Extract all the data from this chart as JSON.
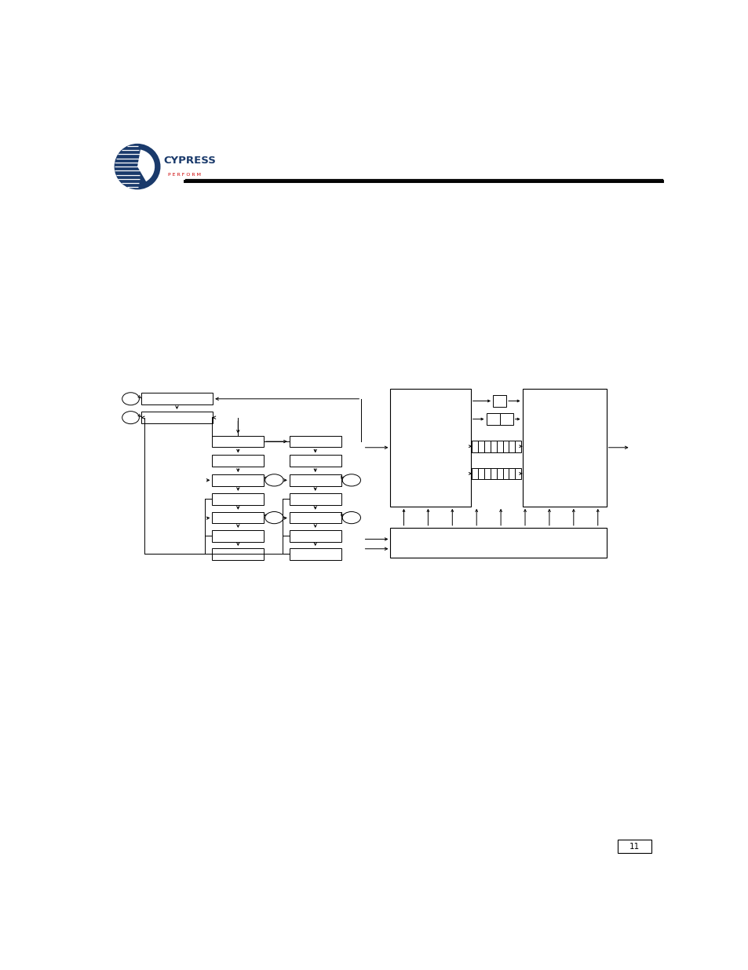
{
  "bg_color": "#ffffff",
  "page_width": 9.54,
  "page_height": 12.35,
  "page_number": "11",
  "logo_cypress_color": "#1a3a6b",
  "logo_perform_color": "#cc0000",
  "line_color": "#000000",
  "diagram_lw": 0.7
}
